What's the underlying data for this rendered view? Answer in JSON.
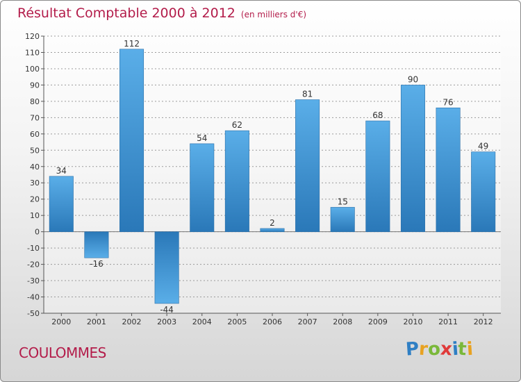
{
  "header": {
    "title": "Résultat Comptable 2000 à 2012",
    "subtitle": "(en milliers d'€)"
  },
  "footer": {
    "commune": "COULOMMES",
    "logo": {
      "letters": [
        "P",
        "r",
        "o",
        "x",
        "i",
        "t",
        "i"
      ],
      "colors": [
        "#2f7fc4",
        "#e8a221",
        "#7ab83a",
        "#e03a3a",
        "#2f7fc4",
        "#7ab83a",
        "#e8a221"
      ]
    }
  },
  "chart_data": {
    "type": "bar",
    "title": "Résultat Comptable 2000 à 2012",
    "subtitle": "(en milliers d'€)",
    "categories": [
      "2000",
      "2001",
      "2002",
      "2003",
      "2004",
      "2005",
      "2006",
      "2007",
      "2008",
      "2009",
      "2010",
      "2011",
      "2012"
    ],
    "values": [
      34,
      -16,
      112,
      -44,
      54,
      62,
      2,
      81,
      15,
      68,
      90,
      76,
      49
    ],
    "value_labels": [
      "34",
      "-16",
      "112",
      "-44",
      "54",
      "62",
      "2",
      "81",
      "15",
      "68",
      "90",
      "76",
      "49"
    ],
    "ylim": [
      -50,
      120
    ],
    "yticks": [
      120,
      110,
      100,
      90,
      80,
      70,
      60,
      50,
      40,
      30,
      20,
      10,
      0,
      -10,
      -20,
      -30,
      -40,
      -50
    ],
    "ytick_labels": [
      "120",
      "110",
      "100",
      "90",
      "80",
      "70",
      "60",
      "50",
      "40",
      "30",
      "20",
      "10",
      "0",
      "-10",
      "-20",
      "-30",
      "-40",
      "-50"
    ],
    "xlabel": "",
    "ylabel": "",
    "grid": true,
    "bar_color": "#3f97d8"
  }
}
